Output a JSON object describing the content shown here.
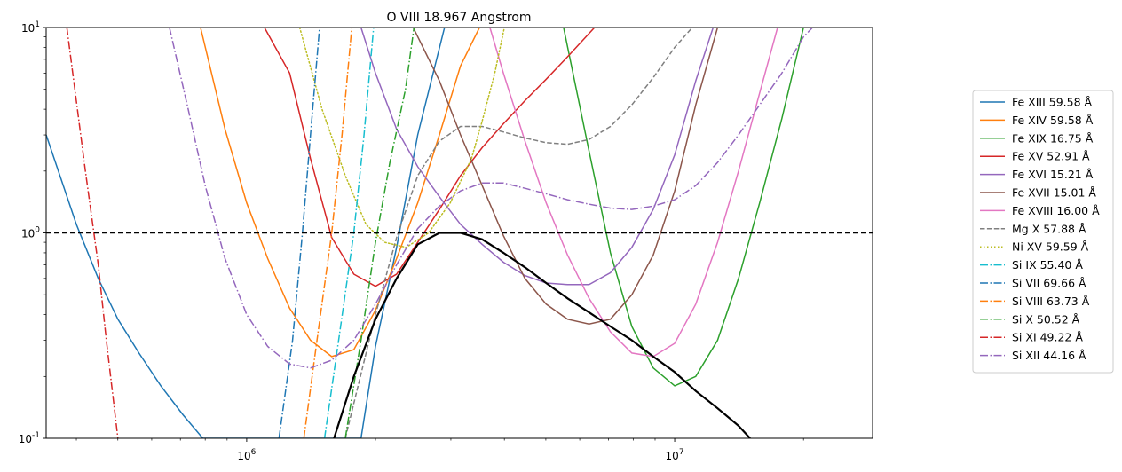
{
  "chart_data": {
    "type": "line",
    "title": "O VIII 18.967 Angstrom",
    "xlabel": "",
    "ylabel": "",
    "xscale": "log",
    "yscale": "log",
    "xlim": [
      340000,
      29000000
    ],
    "ylim": [
      0.1,
      10
    ],
    "x_ticks": [
      {
        "value": 1000000,
        "label": "10^6"
      },
      {
        "value": 10000000,
        "label": "10^7"
      }
    ],
    "y_ticks": [
      {
        "value": 0.1,
        "label": "10^-1"
      },
      {
        "value": 1,
        "label": "10^0"
      },
      {
        "value": 10,
        "label": "10^1"
      }
    ],
    "grid": false,
    "legend_position": "outside-right",
    "reference_line": {
      "y": 1,
      "style": "dashed",
      "color": "#000000"
    },
    "envelope": {
      "color": "#000000",
      "points": [
        [
          1600000,
          0.1
        ],
        [
          1780000,
          0.2
        ],
        [
          2000000,
          0.38
        ],
        [
          2240000,
          0.6
        ],
        [
          2510000,
          0.88
        ],
        [
          2820000,
          1.0
        ],
        [
          3160000,
          1.0
        ],
        [
          3550000,
          0.93
        ],
        [
          3980000,
          0.8
        ],
        [
          4470000,
          0.68
        ],
        [
          5010000,
          0.57
        ],
        [
          5620000,
          0.48
        ],
        [
          6310000,
          0.41
        ],
        [
          7080000,
          0.35
        ],
        [
          7940000,
          0.3
        ],
        [
          8910000,
          0.25
        ],
        [
          10000000,
          0.21
        ],
        [
          11200000,
          0.17
        ],
        [
          12600000,
          0.14
        ],
        [
          14100000,
          0.115
        ],
        [
          15000000,
          0.1
        ]
      ]
    },
    "series": [
      {
        "name": "Fe XIII 59.58 Å",
        "color": "#1f77b4",
        "dash": "solid",
        "points": [
          [
            340000,
            3.0
          ],
          [
            400000,
            1.1
          ],
          [
            450000,
            0.6
          ],
          [
            500000,
            0.38
          ],
          [
            560000,
            0.26
          ],
          [
            630000,
            0.18
          ],
          [
            710000,
            0.13
          ],
          [
            790000,
            0.1
          ],
          [
            1850000,
            0.1
          ],
          [
            2000000,
            0.28
          ],
          [
            2240000,
            0.85
          ],
          [
            2510000,
            3.0
          ],
          [
            2900000,
            10.0
          ]
        ]
      },
      {
        "name": "Fe XIV 59.58 Å",
        "color": "#ff7f0e",
        "dash": "solid",
        "points": [
          [
            780000,
            10.0
          ],
          [
            890000,
            3.2
          ],
          [
            1000000,
            1.4
          ],
          [
            1120000,
            0.75
          ],
          [
            1260000,
            0.43
          ],
          [
            1410000,
            0.3
          ],
          [
            1580000,
            0.25
          ],
          [
            1780000,
            0.27
          ],
          [
            2000000,
            0.42
          ],
          [
            2240000,
            0.75
          ],
          [
            2510000,
            1.4
          ],
          [
            2820000,
            3.0
          ],
          [
            3160000,
            6.5
          ],
          [
            3500000,
            10.0
          ]
        ]
      },
      {
        "name": "Fe XIX 16.75 Å",
        "color": "#2ca02c",
        "dash": "solid",
        "points": [
          [
            5500000,
            10.0
          ],
          [
            6310000,
            2.5
          ],
          [
            7080000,
            0.8
          ],
          [
            7940000,
            0.35
          ],
          [
            8910000,
            0.22
          ],
          [
            10000000,
            0.18
          ],
          [
            11200000,
            0.2
          ],
          [
            12600000,
            0.3
          ],
          [
            14100000,
            0.6
          ],
          [
            15800000,
            1.4
          ],
          [
            17800000,
            3.6
          ],
          [
            20000000,
            10.0
          ]
        ]
      },
      {
        "name": "Fe XV 52.91 Å",
        "color": "#d62728",
        "dash": "solid",
        "points": [
          [
            1100000,
            10.0
          ],
          [
            1260000,
            6.0
          ],
          [
            1410000,
            2.3
          ],
          [
            1580000,
            0.95
          ],
          [
            1780000,
            0.63
          ],
          [
            2000000,
            0.55
          ],
          [
            2240000,
            0.63
          ],
          [
            2510000,
            0.9
          ],
          [
            2820000,
            1.3
          ],
          [
            3160000,
            1.9
          ],
          [
            3550000,
            2.6
          ],
          [
            3980000,
            3.4
          ],
          [
            4470000,
            4.4
          ],
          [
            5010000,
            5.6
          ],
          [
            5620000,
            7.2
          ],
          [
            6500000,
            10.0
          ]
        ]
      },
      {
        "name": "Fe XVI 15.21 Å",
        "color": "#9467bd",
        "dash": "solid",
        "points": [
          [
            1850000,
            10.0
          ],
          [
            2000000,
            6.0
          ],
          [
            2240000,
            3.2
          ],
          [
            2510000,
            2.1
          ],
          [
            2820000,
            1.5
          ],
          [
            3160000,
            1.1
          ],
          [
            3550000,
            0.88
          ],
          [
            3980000,
            0.72
          ],
          [
            4470000,
            0.62
          ],
          [
            5010000,
            0.57
          ],
          [
            5620000,
            0.56
          ],
          [
            6310000,
            0.56
          ],
          [
            7080000,
            0.64
          ],
          [
            7940000,
            0.85
          ],
          [
            8910000,
            1.3
          ],
          [
            10000000,
            2.4
          ],
          [
            11200000,
            5.5
          ],
          [
            12300000,
            10.0
          ]
        ]
      },
      {
        "name": "Fe XVII 15.01 Å",
        "color": "#8c564b",
        "dash": "solid",
        "points": [
          [
            2450000,
            10.0
          ],
          [
            2820000,
            5.5
          ],
          [
            3160000,
            3.0
          ],
          [
            3550000,
            1.7
          ],
          [
            3980000,
            0.97
          ],
          [
            4470000,
            0.6
          ],
          [
            5010000,
            0.45
          ],
          [
            5620000,
            0.38
          ],
          [
            6310000,
            0.36
          ],
          [
            7080000,
            0.38
          ],
          [
            7940000,
            0.5
          ],
          [
            8910000,
            0.78
          ],
          [
            10000000,
            1.6
          ],
          [
            11200000,
            4.2
          ],
          [
            12600000,
            10.0
          ]
        ]
      },
      {
        "name": "Fe XVIII 16.00 Å",
        "color": "#e377c2",
        "dash": "solid",
        "points": [
          [
            3700000,
            10.0
          ],
          [
            3980000,
            6.0
          ],
          [
            4470000,
            2.8
          ],
          [
            5010000,
            1.4
          ],
          [
            5620000,
            0.78
          ],
          [
            6310000,
            0.48
          ],
          [
            7080000,
            0.33
          ],
          [
            7940000,
            0.26
          ],
          [
            8910000,
            0.25
          ],
          [
            10000000,
            0.29
          ],
          [
            11200000,
            0.45
          ],
          [
            12600000,
            0.9
          ],
          [
            14100000,
            2.0
          ],
          [
            15800000,
            4.8
          ],
          [
            17400000,
            10.0
          ]
        ]
      },
      {
        "name": "Mg X 57.88 Å",
        "color": "#7f7f7f",
        "dash": "dashed",
        "points": [
          [
            1700000,
            0.1
          ],
          [
            2000000,
            0.4
          ],
          [
            2240000,
            0.95
          ],
          [
            2510000,
            1.9
          ],
          [
            2820000,
            2.8
          ],
          [
            3160000,
            3.3
          ],
          [
            3550000,
            3.3
          ],
          [
            3980000,
            3.1
          ],
          [
            4470000,
            2.9
          ],
          [
            5010000,
            2.75
          ],
          [
            5620000,
            2.7
          ],
          [
            6310000,
            2.85
          ],
          [
            7080000,
            3.3
          ],
          [
            7940000,
            4.2
          ],
          [
            8910000,
            5.7
          ],
          [
            10000000,
            8.0
          ],
          [
            11000000,
            10.0
          ]
        ]
      },
      {
        "name": "Ni XV 59.59 Å",
        "color": "#bcbd22",
        "dash": "dotted",
        "points": [
          [
            1330000,
            10.0
          ],
          [
            1500000,
            4.0
          ],
          [
            1700000,
            1.9
          ],
          [
            1900000,
            1.1
          ],
          [
            2100000,
            0.9
          ],
          [
            2360000,
            0.85
          ],
          [
            2660000,
            1.0
          ],
          [
            2990000,
            1.4
          ],
          [
            3350000,
            2.3
          ],
          [
            3550000,
            3.5
          ],
          [
            3800000,
            6.0
          ],
          [
            4000000,
            10.0
          ]
        ]
      },
      {
        "name": "Si IX 55.40 Å",
        "color": "#17becf",
        "dash": "dashdot",
        "points": [
          [
            1520000,
            0.1
          ],
          [
            1640000,
            0.3
          ],
          [
            1780000,
            1.0
          ],
          [
            1880000,
            3.0
          ],
          [
            1980000,
            10.0
          ]
        ]
      },
      {
        "name": "Si VII 69.66 Å",
        "color": "#1f77b4",
        "dash": "dashdot",
        "points": [
          [
            1190000,
            0.1
          ],
          [
            1280000,
            0.3
          ],
          [
            1350000,
            1.0
          ],
          [
            1410000,
            3.0
          ],
          [
            1480000,
            10.0
          ]
        ]
      },
      {
        "name": "Si VIII 63.73 Å",
        "color": "#ff7f0e",
        "dash": "dashdot",
        "points": [
          [
            1360000,
            0.1
          ],
          [
            1460000,
            0.3
          ],
          [
            1580000,
            1.0
          ],
          [
            1670000,
            3.0
          ],
          [
            1760000,
            10.0
          ]
        ]
      },
      {
        "name": "Si X 50.52 Å",
        "color": "#2ca02c",
        "dash": "dashdot",
        "points": [
          [
            1700000,
            0.1
          ],
          [
            1850000,
            0.3
          ],
          [
            2000000,
            0.9
          ],
          [
            2160000,
            2.2
          ],
          [
            2350000,
            5.0
          ],
          [
            2460000,
            10.0
          ]
        ]
      },
      {
        "name": "Si XI 49.22 Å",
        "color": "#d62728",
        "dash": "dashdot",
        "points": [
          [
            380000,
            10.0
          ],
          [
            420000,
            2.0
          ],
          [
            450000,
            0.7
          ],
          [
            470000,
            0.3
          ],
          [
            500000,
            0.1
          ]
        ]
      },
      {
        "name": "Si XII 44.16 Å",
        "color": "#9467bd",
        "dash": "dashdot",
        "points": [
          [
            660000,
            10.0
          ],
          [
            730000,
            4.0
          ],
          [
            800000,
            1.7
          ],
          [
            890000,
            0.75
          ],
          [
            1000000,
            0.4
          ],
          [
            1120000,
            0.28
          ],
          [
            1260000,
            0.23
          ],
          [
            1410000,
            0.22
          ],
          [
            1580000,
            0.24
          ],
          [
            1780000,
            0.3
          ],
          [
            2000000,
            0.45
          ],
          [
            2240000,
            0.7
          ],
          [
            2510000,
            1.05
          ],
          [
            2820000,
            1.35
          ],
          [
            3160000,
            1.6
          ],
          [
            3550000,
            1.75
          ],
          [
            3980000,
            1.75
          ],
          [
            4470000,
            1.65
          ],
          [
            5010000,
            1.55
          ],
          [
            5620000,
            1.45
          ],
          [
            6310000,
            1.38
          ],
          [
            7080000,
            1.32
          ],
          [
            7940000,
            1.3
          ],
          [
            8910000,
            1.35
          ],
          [
            10000000,
            1.45
          ],
          [
            11200000,
            1.7
          ],
          [
            12600000,
            2.2
          ],
          [
            14100000,
            3.0
          ],
          [
            15800000,
            4.2
          ],
          [
            17800000,
            6.0
          ],
          [
            20000000,
            9.0
          ],
          [
            21000000,
            10.0
          ]
        ]
      }
    ]
  }
}
